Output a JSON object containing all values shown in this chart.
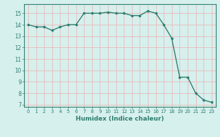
{
  "x": [
    0,
    1,
    2,
    3,
    4,
    5,
    6,
    7,
    8,
    9,
    10,
    11,
    12,
    13,
    14,
    15,
    16,
    17,
    18,
    19,
    20,
    21,
    22,
    23
  ],
  "y": [
    14.0,
    13.8,
    13.8,
    13.5,
    13.8,
    14.0,
    14.0,
    15.0,
    15.0,
    15.0,
    15.1,
    15.0,
    15.0,
    14.8,
    14.8,
    15.2,
    15.0,
    14.0,
    12.8,
    9.4,
    9.4,
    8.0,
    7.4,
    7.2
  ],
  "title": "",
  "xlabel": "Humidex (Indice chaleur)",
  "ylabel": "",
  "xlim": [
    -0.5,
    23.5
  ],
  "ylim": [
    6.8,
    15.8
  ],
  "yticks": [
    7,
    8,
    9,
    10,
    11,
    12,
    13,
    14,
    15
  ],
  "xticks": [
    0,
    1,
    2,
    3,
    4,
    5,
    6,
    7,
    8,
    9,
    10,
    11,
    12,
    13,
    14,
    15,
    16,
    17,
    18,
    19,
    20,
    21,
    22,
    23
  ],
  "line_color": "#2e7d6e",
  "marker_color": "#2e7d6e",
  "bg_color": "#d6f0ee",
  "grid_color": "#c8e8e4",
  "title_color": "#2e7d6e",
  "label_color": "#2e7d6e",
  "tick_color": "#2e7d6e",
  "spine_color": "#2e7d6e"
}
